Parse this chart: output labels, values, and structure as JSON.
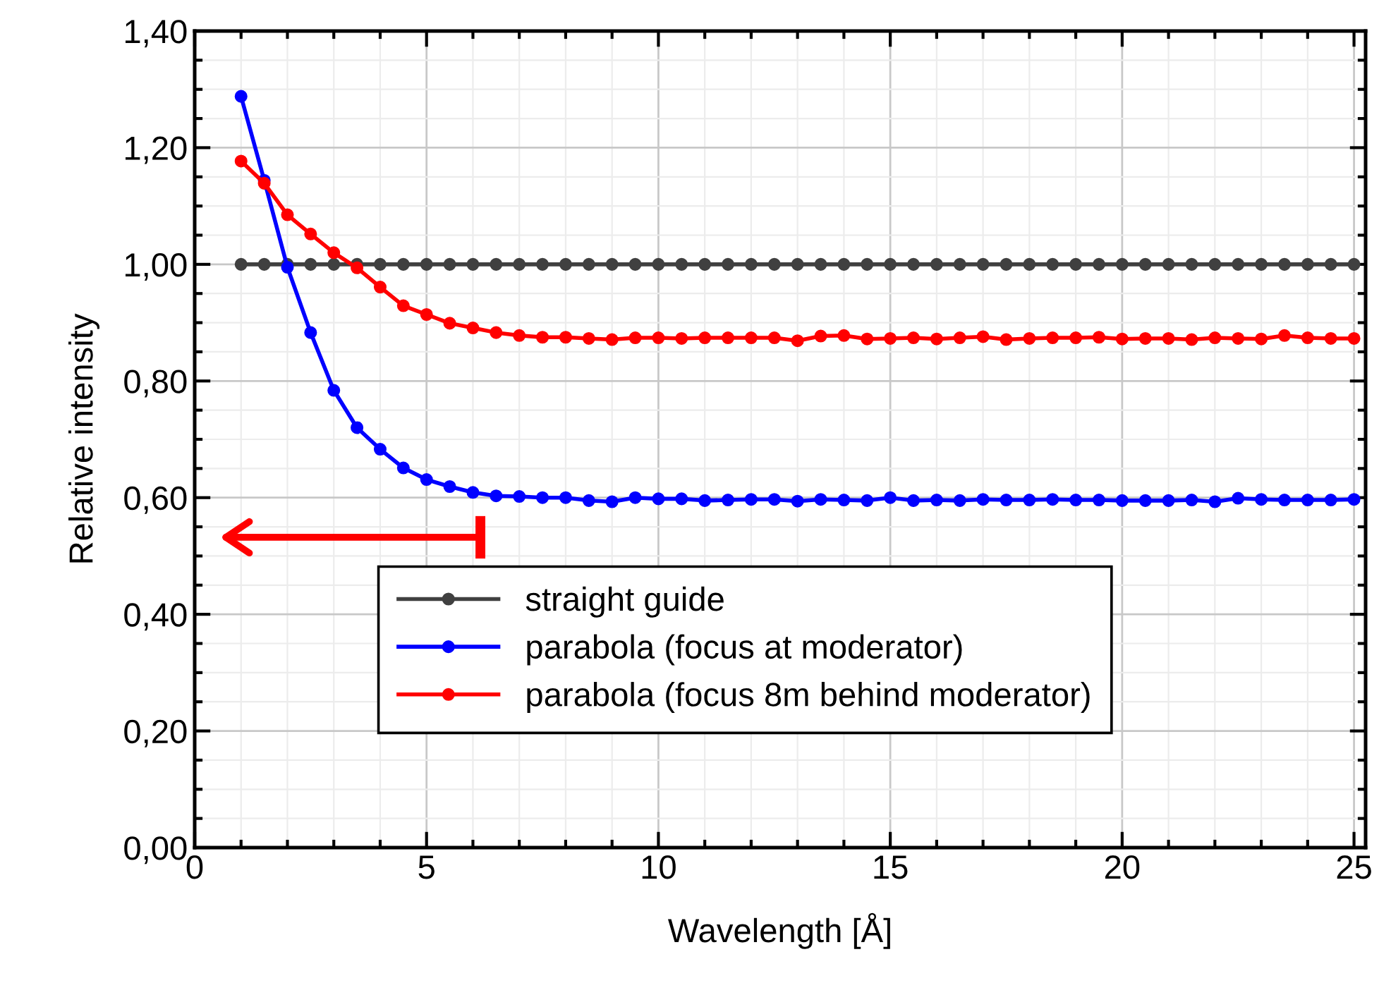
{
  "chart_data": {
    "type": "line",
    "xlabel": "Wavelength [Å]",
    "ylabel": "Relative intensity",
    "x": [
      1,
      1.5,
      2,
      2.5,
      3,
      3.5,
      4,
      4.5,
      5,
      5.5,
      6,
      6.5,
      7,
      7.5,
      8,
      8.5,
      9,
      9.5,
      10,
      10.5,
      11,
      11.5,
      12,
      12.5,
      13,
      13.5,
      14,
      14.5,
      15,
      15.5,
      16,
      16.5,
      17,
      17.5,
      18,
      18.5,
      19,
      19.5,
      20,
      20.5,
      21,
      21.5,
      22,
      22.5,
      23,
      23.5,
      24,
      24.5,
      25
    ],
    "series": [
      {
        "name": "straight guide",
        "color": "#404040",
        "values": [
          1,
          1,
          1,
          1,
          1,
          1,
          1,
          1,
          1,
          1,
          1,
          1,
          1,
          1,
          1,
          1,
          1,
          1,
          1,
          1,
          1,
          1,
          1,
          1,
          1,
          1,
          1,
          1,
          1,
          1,
          1,
          1,
          1,
          1,
          1,
          1,
          1,
          1,
          1,
          1,
          1,
          1,
          1,
          1,
          1,
          1,
          1,
          1,
          1
        ]
      },
      {
        "name": "parabola (focus at moderator)",
        "color": "#0000ff",
        "values": [
          1.288,
          1.144,
          0.995,
          0.883,
          0.784,
          0.72,
          0.683,
          0.651,
          0.631,
          0.619,
          0.609,
          0.603,
          0.602,
          0.6,
          0.6,
          0.595,
          0.593,
          0.6,
          0.598,
          0.598,
          0.595,
          0.596,
          0.597,
          0.597,
          0.594,
          0.597,
          0.596,
          0.595,
          0.6,
          0.595,
          0.596,
          0.595,
          0.597,
          0.596,
          0.596,
          0.597,
          0.596,
          0.596,
          0.595,
          0.595,
          0.595,
          0.596,
          0.593,
          0.599,
          0.597,
          0.596,
          0.596,
          0.596,
          0.597
        ]
      },
      {
        "name": "parabola (focus 8m behind moderator)",
        "color": "#ff0000",
        "values": [
          1.177,
          1.139,
          1.085,
          1.052,
          1.02,
          0.994,
          0.961,
          0.929,
          0.914,
          0.899,
          0.891,
          0.883,
          0.878,
          0.875,
          0.875,
          0.873,
          0.871,
          0.874,
          0.874,
          0.873,
          0.874,
          0.874,
          0.874,
          0.874,
          0.869,
          0.877,
          0.878,
          0.872,
          0.873,
          0.874,
          0.872,
          0.874,
          0.876,
          0.871,
          0.873,
          0.874,
          0.874,
          0.875,
          0.872,
          0.873,
          0.873,
          0.871,
          0.874,
          0.873,
          0.872,
          0.878,
          0.874,
          0.873,
          0.873
        ]
      }
    ],
    "xlim": [
      0,
      25.25
    ],
    "xticks": [
      0,
      5,
      10,
      15,
      20,
      25
    ],
    "ylim": [
      0,
      1.4
    ],
    "yticks": [
      {
        "value": 0,
        "label": "0,00"
      },
      {
        "value": 0.2,
        "label": "0,20"
      },
      {
        "value": 0.4,
        "label": "0,40"
      },
      {
        "value": 0.6,
        "label": "0,60"
      },
      {
        "value": 0.8,
        "label": "0,80"
      },
      {
        "value": 1.0,
        "label": "1,00"
      },
      {
        "value": 1.2,
        "label": "1,20"
      },
      {
        "value": 1.4,
        "label": "1,40"
      }
    ],
    "grid": true,
    "legend": "bottom",
    "marker": "circle",
    "line_style": "solid"
  }
}
